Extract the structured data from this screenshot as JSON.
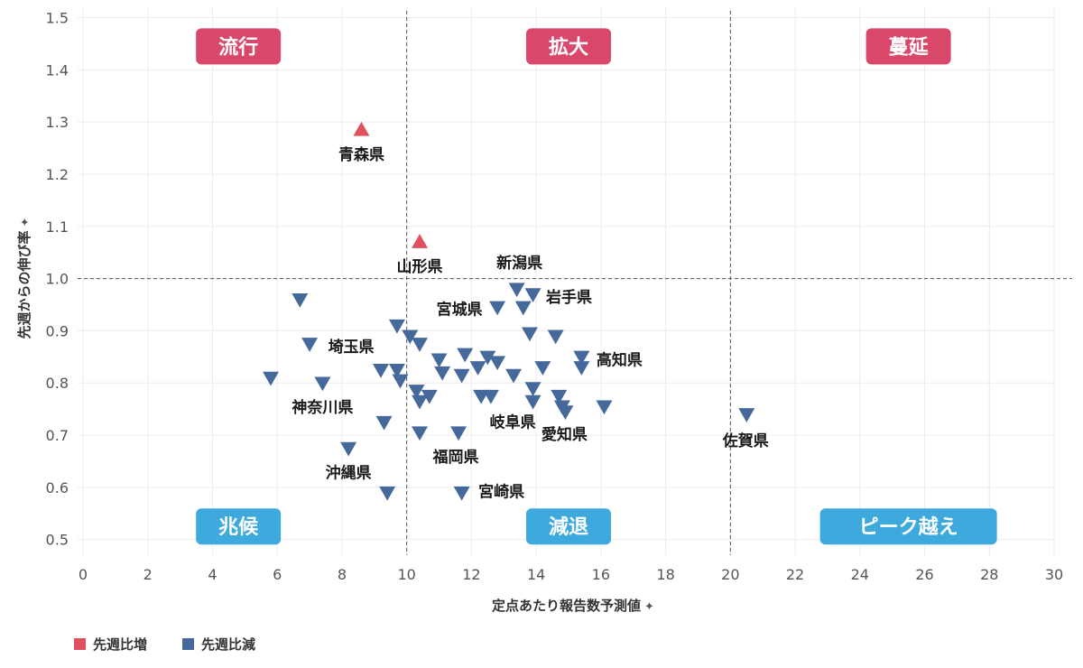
{
  "chart_data": {
    "type": "scatter",
    "xlabel": "定点あたり報告数予測値",
    "ylabel": "先週からの伸び率",
    "xlim": [
      0,
      30
    ],
    "ylim": [
      0.47,
      1.52
    ],
    "x_ticks": [
      0,
      2,
      4,
      6,
      8,
      10,
      12,
      14,
      16,
      18,
      20,
      22,
      24,
      26,
      28,
      30
    ],
    "y_ticks": [
      0.5,
      0.6,
      0.7,
      0.8,
      0.9,
      1.0,
      1.1,
      1.2,
      1.3,
      1.4,
      1.5
    ],
    "y_tick_labels": [
      "0.5",
      "0.6",
      "0.7",
      "0.8",
      "0.9",
      "1.0",
      "1.1",
      "1.2",
      "1.3",
      "1.4",
      "1.5"
    ],
    "reference_lines": {
      "x": [
        10,
        20
      ],
      "y": [
        1.0
      ]
    },
    "quadrant_labels": [
      {
        "text": "流行",
        "x": 4.8,
        "y": 1.445,
        "color": "#d9476b"
      },
      {
        "text": "拡大",
        "x": 15.0,
        "y": 1.445,
        "color": "#d9476b"
      },
      {
        "text": "蔓延",
        "x": 25.5,
        "y": 1.445,
        "color": "#d9476b"
      },
      {
        "text": "兆候",
        "x": 4.8,
        "y": 0.525,
        "color": "#3ea9dc"
      },
      {
        "text": "減退",
        "x": 15.0,
        "y": 0.525,
        "color": "#3ea9dc"
      },
      {
        "text": "ピーク越え",
        "x": 25.5,
        "y": 0.525,
        "color": "#3ea9dc"
      }
    ],
    "series": [
      {
        "name": "先週比増",
        "color": "#e0505f",
        "marker": "triangle-up",
        "points": [
          {
            "x": 8.6,
            "y": 1.285,
            "label": "青森県"
          },
          {
            "x": 10.4,
            "y": 1.07,
            "label": "山形県"
          }
        ]
      },
      {
        "name": "先週比減",
        "color": "#46699c",
        "marker": "triangle-down",
        "points": [
          {
            "x": 13.4,
            "y": 0.98,
            "label": "新潟県"
          },
          {
            "x": 13.9,
            "y": 0.97,
            "label": "岩手県"
          },
          {
            "x": 12.8,
            "y": 0.945,
            "label": "宮城県"
          },
          {
            "x": 7.0,
            "y": 0.875,
            "label": "埼玉県"
          },
          {
            "x": 15.4,
            "y": 0.85,
            "label": "高知県"
          },
          {
            "x": 7.4,
            "y": 0.8,
            "label": "神奈川県"
          },
          {
            "x": 12.3,
            "y": 0.775,
            "label": "岐阜県"
          },
          {
            "x": 14.9,
            "y": 0.745,
            "label": "愛知県"
          },
          {
            "x": 20.5,
            "y": 0.74,
            "label": "佐賀県"
          },
          {
            "x": 11.6,
            "y": 0.705,
            "label": "福岡県"
          },
          {
            "x": 8.2,
            "y": 0.675,
            "label": "沖縄県"
          },
          {
            "x": 11.7,
            "y": 0.59,
            "label": "宮崎県"
          },
          {
            "x": 6.7,
            "y": 0.96
          },
          {
            "x": 5.8,
            "y": 0.81
          },
          {
            "x": 9.4,
            "y": 0.59
          },
          {
            "x": 9.3,
            "y": 0.725
          },
          {
            "x": 9.7,
            "y": 0.91
          },
          {
            "x": 10.1,
            "y": 0.89
          },
          {
            "x": 10.4,
            "y": 0.875
          },
          {
            "x": 9.2,
            "y": 0.825
          },
          {
            "x": 9.7,
            "y": 0.825
          },
          {
            "x": 9.8,
            "y": 0.805
          },
          {
            "x": 10.3,
            "y": 0.785
          },
          {
            "x": 10.4,
            "y": 0.765
          },
          {
            "x": 10.7,
            "y": 0.775
          },
          {
            "x": 10.4,
            "y": 0.705
          },
          {
            "x": 11.0,
            "y": 0.845
          },
          {
            "x": 11.1,
            "y": 0.82
          },
          {
            "x": 11.8,
            "y": 0.855
          },
          {
            "x": 11.7,
            "y": 0.815
          },
          {
            "x": 12.2,
            "y": 0.83
          },
          {
            "x": 12.5,
            "y": 0.85
          },
          {
            "x": 12.8,
            "y": 0.84
          },
          {
            "x": 12.6,
            "y": 0.775
          },
          {
            "x": 13.3,
            "y": 0.815
          },
          {
            "x": 13.6,
            "y": 0.945
          },
          {
            "x": 13.8,
            "y": 0.895
          },
          {
            "x": 14.6,
            "y": 0.89
          },
          {
            "x": 14.2,
            "y": 0.83
          },
          {
            "x": 13.9,
            "y": 0.79
          },
          {
            "x": 13.9,
            "y": 0.765
          },
          {
            "x": 14.7,
            "y": 0.775
          },
          {
            "x": 14.8,
            "y": 0.755
          },
          {
            "x": 15.4,
            "y": 0.83
          },
          {
            "x": 16.1,
            "y": 0.755
          }
        ]
      }
    ],
    "legend": {
      "position": "bottom-left",
      "entries": [
        "先週比増",
        "先週比減"
      ]
    }
  }
}
